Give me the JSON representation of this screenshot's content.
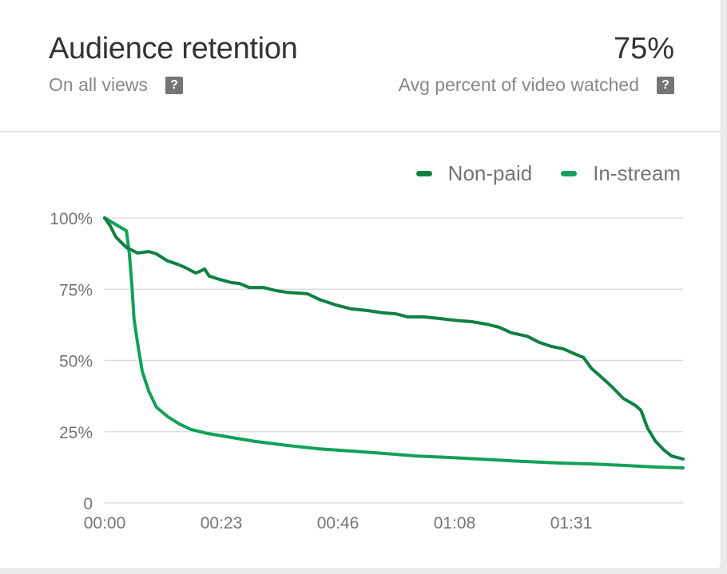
{
  "header": {
    "title": "Audience retention",
    "subtitle": "On all views",
    "metric_value": "75%",
    "metric_label": "Avg percent of video watched",
    "help_glyph": "?"
  },
  "colors": {
    "non_paid": "#0f8043",
    "in_stream": "#12a05a",
    "grid": "#dddddd",
    "axis_text": "#757575"
  },
  "legend": [
    {
      "label": "Non-paid",
      "color": "#0f8043"
    },
    {
      "label": "In-stream",
      "color": "#12a05a"
    }
  ],
  "chart_data": {
    "type": "line",
    "title": "Audience retention",
    "xlabel": "",
    "ylabel": "",
    "ylim": [
      0,
      100
    ],
    "xlim_seconds": [
      0,
      114
    ],
    "grid": true,
    "legend_position": "top-right",
    "y_ticks": [
      "0",
      "25%",
      "50%",
      "75%",
      "100%"
    ],
    "x_ticks": [
      "00:00",
      "00:23",
      "00:46",
      "01:08",
      "01:31"
    ],
    "series": [
      {
        "name": "Non-paid",
        "color": "#0f8043",
        "x_seconds": [
          0,
          1.1,
          2.2,
          4.3,
          6.5,
          8.7,
          10.2,
          12.4,
          14.3,
          15.9,
          17.9,
          18.7,
          19.7,
          20.6,
          22.7,
          25.0,
          26.6,
          28.5,
          31.3,
          33.7,
          36.0,
          40.0,
          42.3,
          45.5,
          48.6,
          51.8,
          54.9,
          57.3,
          59.7,
          62.8,
          66.0,
          69.1,
          72.3,
          75.4,
          77.8,
          80.2,
          83.3,
          85.7,
          88.1,
          90.4,
          92.5,
          94.4,
          95.9,
          97.5,
          99.9,
          102.2,
          104.6,
          105.7,
          107.0,
          108.5,
          110.1,
          111.7,
          114.0
        ],
        "values": [
          100,
          97.2,
          93.3,
          89.6,
          87.7,
          88.2,
          87.4,
          84.9,
          83.8,
          82.6,
          80.7,
          81.2,
          82.1,
          79.6,
          78.4,
          77.3,
          77.0,
          75.6,
          75.6,
          74.5,
          73.9,
          73.4,
          71.4,
          69.5,
          68.1,
          67.5,
          66.7,
          66.4,
          65.3,
          65.3,
          64.7,
          64.1,
          63.6,
          62.7,
          61.6,
          59.7,
          58.5,
          56.3,
          54.9,
          54.1,
          52.4,
          51.0,
          47.3,
          44.8,
          40.9,
          36.7,
          34.2,
          32.5,
          26.3,
          21.8,
          18.8,
          16.5,
          15.4
        ]
      },
      {
        "name": "In-stream",
        "color": "#12a05a",
        "x_seconds": [
          0,
          4.3,
          4.9,
          5.4,
          5.8,
          6.5,
          7.4,
          8.7,
          10.2,
          12.4,
          14.7,
          17.0,
          20.2,
          24.9,
          29.6,
          35.9,
          42.3,
          48.6,
          54.9,
          61.2,
          67.5,
          73.8,
          80.2,
          89.6,
          95.9,
          102.2,
          108.5,
          114.0
        ],
        "values": [
          100,
          95.5,
          86.8,
          75.6,
          64.4,
          56.0,
          46.2,
          39.2,
          33.6,
          30.3,
          27.7,
          25.8,
          24.4,
          23.0,
          21.6,
          20.2,
          19.0,
          18.2,
          17.4,
          16.5,
          16.0,
          15.4,
          14.8,
          14.0,
          13.7,
          13.2,
          12.6,
          12.3
        ]
      }
    ]
  }
}
